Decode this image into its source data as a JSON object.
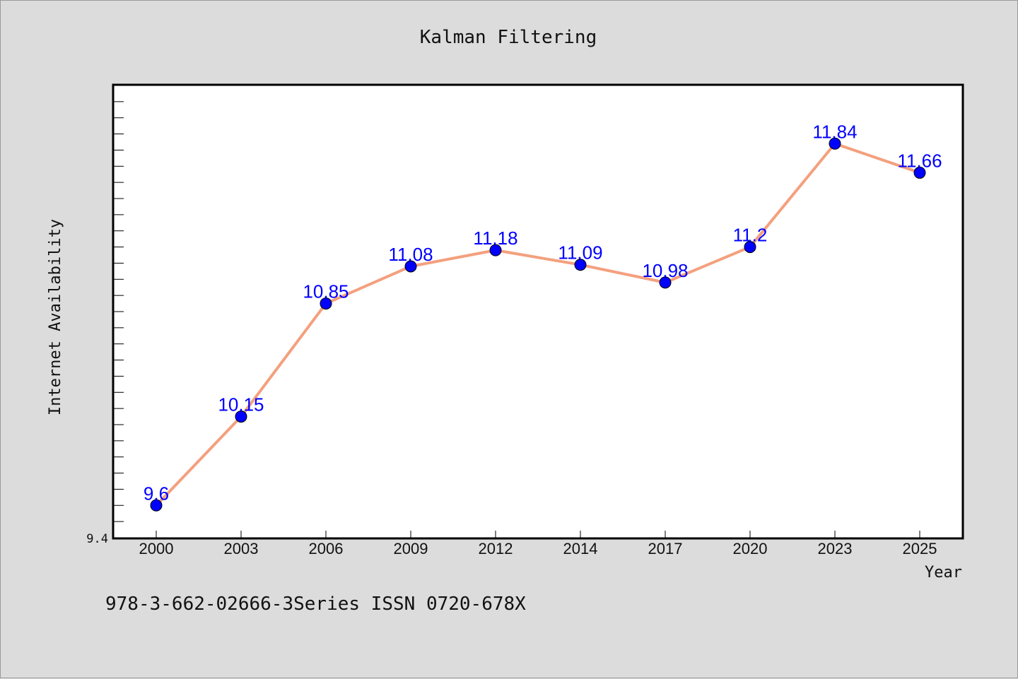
{
  "chart_data": {
    "type": "line",
    "title": "Kalman Filtering",
    "xlabel": "Year",
    "ylabel": "Internet Availability",
    "categories": [
      "2000",
      "2003",
      "2006",
      "2009",
      "2012",
      "2014",
      "2017",
      "2020",
      "2023",
      "2025"
    ],
    "values": [
      9.6,
      10.15,
      10.85,
      11.08,
      11.18,
      11.09,
      10.98,
      11.2,
      11.84,
      11.66
    ],
    "data_labels": [
      "9.6",
      "10.15",
      "10.85",
      "11.08",
      "11.18",
      "11.09",
      "10.98",
      "11.2",
      "11.84",
      "11.66"
    ],
    "y_tick_labels": [
      "9.4"
    ],
    "ylim": [
      9.4,
      12.2
    ],
    "grid": false,
    "legend": "none",
    "line_color": "#f4a07e",
    "marker_color": "#0000ff",
    "label_color": "#0000ff",
    "background_color": "#dcdcdc",
    "plot_background": "#ffffff"
  },
  "footer": {
    "text": "978-3-662-02666-3Series ISSN 0720-678X"
  }
}
